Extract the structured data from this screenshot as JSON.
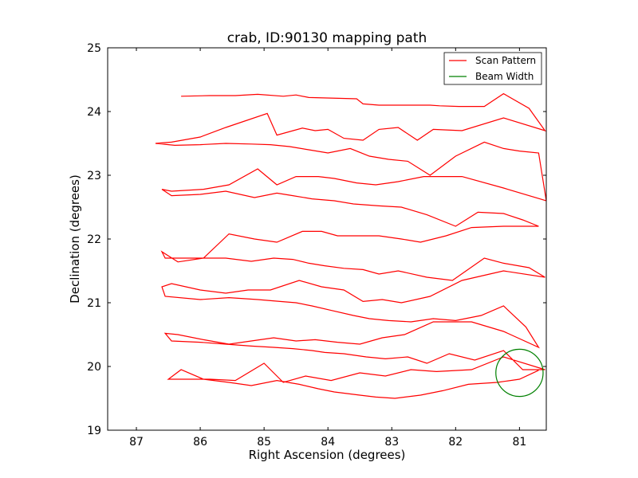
{
  "chart_data": {
    "type": "line",
    "title": "crab, ID:90130 mapping path",
    "xlabel": "Right Ascension (degrees)",
    "ylabel": "Declination (degrees)",
    "xlim": [
      87.45,
      80.58
    ],
    "ylim": [
      19,
      25
    ],
    "x_ticks": [
      "87",
      "86",
      "85",
      "84",
      "83",
      "82",
      "81"
    ],
    "x_tick_values": [
      87,
      86,
      85,
      84,
      83,
      82,
      81
    ],
    "y_ticks": [
      "19",
      "20",
      "21",
      "22",
      "23",
      "24",
      "25"
    ],
    "y_tick_values": [
      19,
      20,
      21,
      22,
      23,
      24,
      25
    ],
    "grid": false,
    "legend_position": "top-right",
    "series": [
      {
        "name": "Scan Pattern",
        "color": "#ff0000",
        "x": [
          86.3,
          85.85,
          85.45,
          85.1,
          84.7,
          84.5,
          84.3,
          83.55,
          83.45,
          83.2,
          82.6,
          82.4,
          82.25,
          81.95,
          81.75,
          81.55,
          81.25,
          80.85,
          80.6,
          81.25,
          81.9,
          82.35,
          82.6,
          82.9,
          83.2,
          83.45,
          83.75,
          84.0,
          84.2,
          84.4,
          84.8,
          84.95,
          85.6,
          86.0,
          86.45,
          86.7,
          86.4,
          86.0,
          85.6,
          85.2,
          84.9,
          84.6,
          84.3,
          84.0,
          83.65,
          83.35,
          83.05,
          82.75,
          82.4,
          82.0,
          81.55,
          81.25,
          81.0,
          80.7,
          80.58,
          81.25,
          81.9,
          82.5,
          82.9,
          83.25,
          83.55,
          83.9,
          84.15,
          84.5,
          84.8,
          85.1,
          85.55,
          85.95,
          86.45,
          86.6,
          86.45,
          86.0,
          85.6,
          85.15,
          84.8,
          84.55,
          84.25,
          83.9,
          83.6,
          83.2,
          82.85,
          82.45,
          82.0,
          81.65,
          81.25,
          80.95,
          80.7,
          81.25,
          81.75,
          82.15,
          82.55,
          82.85,
          83.2,
          83.55,
          83.85,
          84.1,
          84.4,
          84.8,
          85.15,
          85.55,
          85.95,
          86.35,
          86.6,
          86.55,
          86.05,
          85.6,
          85.2,
          84.85,
          84.55,
          84.3,
          84.05,
          83.75,
          83.45,
          83.2,
          82.9,
          82.45,
          82.05,
          81.55,
          81.25,
          80.85,
          80.6,
          81.25,
          81.9,
          82.4,
          82.85,
          83.15,
          83.45,
          83.75,
          84.1,
          84.45,
          84.9,
          85.25,
          85.6,
          86.0,
          86.45,
          86.6,
          86.55,
          86.0,
          85.55,
          85.1,
          84.75,
          84.5,
          84.25,
          83.95,
          83.6,
          83.35,
          83.05,
          82.7,
          82.35,
          82.0,
          81.6,
          81.25,
          80.9,
          80.7,
          81.25,
          81.75,
          82.35,
          82.8,
          83.15,
          83.5,
          83.85,
          84.2,
          84.5,
          84.85,
          85.2,
          85.55,
          85.95,
          86.35,
          86.55,
          86.45,
          86.0,
          85.6,
          85.2,
          84.85,
          84.55,
          84.25,
          84.05,
          83.75,
          83.4,
          83.1,
          82.75,
          82.45,
          82.1,
          81.7,
          81.25,
          80.95,
          80.6,
          81.25,
          81.75,
          82.3,
          82.7,
          83.1,
          83.5,
          83.95,
          84.35,
          84.7,
          85.0,
          85.45,
          85.85,
          86.25,
          86.5,
          86.3,
          85.95,
          85.55,
          85.2,
          84.8,
          84.45,
          84.15,
          83.9,
          83.5,
          83.25,
          82.95,
          82.55,
          82.2,
          81.8,
          81.35,
          81.0,
          80.7
        ],
        "y": [
          24.24,
          24.25,
          24.25,
          24.27,
          24.24,
          24.26,
          24.22,
          24.2,
          24.12,
          24.1,
          24.1,
          24.1,
          24.09,
          24.08,
          24.08,
          24.08,
          24.28,
          24.05,
          23.7,
          23.9,
          23.7,
          23.72,
          23.55,
          23.75,
          23.72,
          23.55,
          23.58,
          23.72,
          23.7,
          23.74,
          23.63,
          23.97,
          23.75,
          23.6,
          23.52,
          23.5,
          23.47,
          23.48,
          23.5,
          23.49,
          23.48,
          23.45,
          23.4,
          23.35,
          23.42,
          23.3,
          23.25,
          23.22,
          23.0,
          23.3,
          23.52,
          23.42,
          23.38,
          23.35,
          22.6,
          22.8,
          22.98,
          22.98,
          22.9,
          22.85,
          22.88,
          22.95,
          22.98,
          22.98,
          22.85,
          23.1,
          22.85,
          22.78,
          22.75,
          22.78,
          22.68,
          22.7,
          22.75,
          22.65,
          22.72,
          22.68,
          22.63,
          22.6,
          22.55,
          22.52,
          22.5,
          22.38,
          22.2,
          22.42,
          22.4,
          22.3,
          22.2,
          22.2,
          22.18,
          22.05,
          21.95,
          22.0,
          22.05,
          22.05,
          22.05,
          22.12,
          22.12,
          21.95,
          22.0,
          22.08,
          21.7,
          21.64,
          21.8,
          21.7,
          21.7,
          21.7,
          21.65,
          21.7,
          21.68,
          21.62,
          21.58,
          21.54,
          21.52,
          21.45,
          21.5,
          21.4,
          21.35,
          21.7,
          21.62,
          21.55,
          21.4,
          21.5,
          21.35,
          21.1,
          21.0,
          21.05,
          21.02,
          21.2,
          21.25,
          21.35,
          21.2,
          21.2,
          21.15,
          21.2,
          21.3,
          21.25,
          21.1,
          21.05,
          21.08,
          21.05,
          21.02,
          21.0,
          20.95,
          20.88,
          20.8,
          20.75,
          20.72,
          20.7,
          20.75,
          20.72,
          20.8,
          20.95,
          20.62,
          20.3,
          20.55,
          20.7,
          20.7,
          20.5,
          20.45,
          20.35,
          20.38,
          20.42,
          20.4,
          20.45,
          20.4,
          20.35,
          20.42,
          20.5,
          20.52,
          20.4,
          20.38,
          20.35,
          20.32,
          20.3,
          20.28,
          20.25,
          20.22,
          20.2,
          20.15,
          20.12,
          20.15,
          20.05,
          20.2,
          20.1,
          20.25,
          19.95,
          19.95,
          20.15,
          19.95,
          19.92,
          19.95,
          19.85,
          19.9,
          19.78,
          19.85,
          19.75,
          20.05,
          19.78,
          19.8,
          19.8,
          19.8,
          19.95,
          19.8,
          19.75,
          19.7,
          19.78,
          19.72,
          19.65,
          19.6,
          19.55,
          19.52,
          19.5,
          19.55,
          19.62,
          19.72,
          19.75,
          19.8,
          19.94
        ]
      },
      {
        "name": "Beam Width",
        "color": "#008000",
        "center": [
          81.0,
          19.9
        ],
        "radius_deg": 0.37
      }
    ]
  }
}
